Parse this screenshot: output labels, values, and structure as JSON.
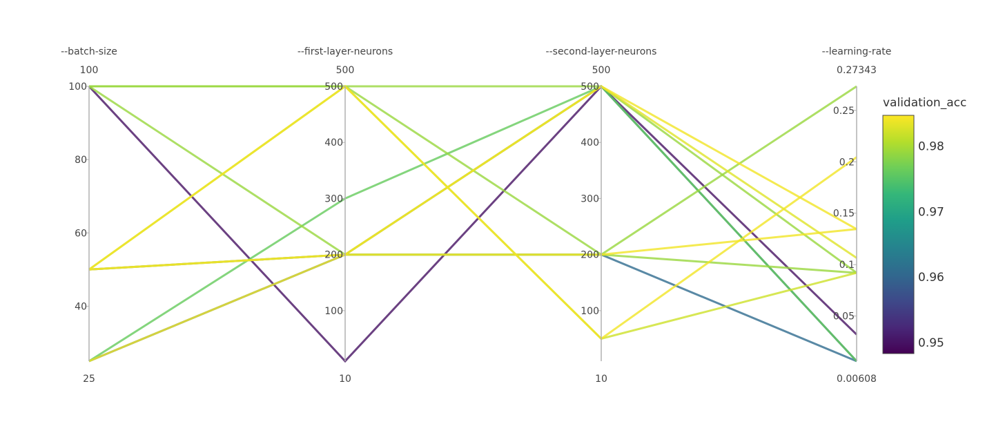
{
  "chart_data": {
    "type": "parallel_coordinates",
    "dimensions": [
      {
        "label": "--batch-size",
        "range": [
          25,
          100
        ],
        "range_labels": {
          "max": "100",
          "min": "25"
        },
        "tickvals": [
          100,
          80,
          60,
          40
        ],
        "ticktext": [
          "100",
          "80",
          "60",
          "40"
        ]
      },
      {
        "label": "--first-layer-neurons",
        "range": [
          10,
          500
        ],
        "range_labels": {
          "max": "500",
          "min": "10"
        },
        "tickvals": [
          500,
          400,
          300,
          200,
          100
        ],
        "ticktext": [
          "500",
          "400",
          "300",
          "200",
          "100"
        ]
      },
      {
        "label": "--second-layer-neurons",
        "range": [
          10,
          500
        ],
        "range_labels": {
          "max": "500",
          "min": "10"
        },
        "tickvals": [
          500,
          400,
          300,
          200,
          100
        ],
        "ticktext": [
          "500",
          "400",
          "300",
          "200",
          "100"
        ]
      },
      {
        "label": "--learning-rate",
        "range": [
          0.00608,
          0.27343
        ],
        "range_labels": {
          "max": "0.27343",
          "min": "0.00608"
        },
        "tickvals": [
          0.25,
          0.2,
          0.15,
          0.1,
          0.05
        ],
        "ticktext": [
          "0.25",
          "0.2",
          "0.15",
          "0.1",
          "0.05"
        ]
      }
    ],
    "lines": [
      {
        "values": [
          100,
          500,
          200,
          0.27343
        ],
        "validation_acc": 0.979
      },
      {
        "values": [
          100,
          500,
          500,
          0.092
        ],
        "validation_acc": 0.979
      },
      {
        "values": [
          100,
          200,
          200,
          0.092
        ],
        "validation_acc": 0.979
      },
      {
        "values": [
          100,
          10,
          500,
          0.032
        ],
        "validation_acc": 0.95
      },
      {
        "values": [
          50,
          500,
          50,
          0.2045
        ],
        "validation_acc": 0.984
      },
      {
        "values": [
          50,
          200,
          500,
          0.1065
        ],
        "validation_acc": 0.983
      },
      {
        "values": [
          50,
          200,
          500,
          0.1345
        ],
        "validation_acc": 0.984
      },
      {
        "values": [
          50,
          200,
          500,
          0.00608
        ],
        "validation_acc": 0.961
      },
      {
        "values": [
          50,
          500,
          50,
          0.092
        ],
        "validation_acc": 0.982
      },
      {
        "values": [
          25,
          300,
          500,
          0.00608
        ],
        "validation_acc": 0.976
      },
      {
        "values": [
          25,
          200,
          200,
          0.00608
        ],
        "validation_acc": 0.961
      },
      {
        "values": [
          25,
          200,
          200,
          0.1345
        ],
        "validation_acc": 0.984
      }
    ],
    "colorbar": {
      "title": "validation_acc",
      "range": [
        0.9483,
        0.9847
      ],
      "tickvals": [
        0.95,
        0.96,
        0.97,
        0.98
      ],
      "ticktext": [
        "0.95",
        "0.96",
        "0.97",
        "0.98"
      ],
      "colorscale": "Viridis"
    }
  }
}
